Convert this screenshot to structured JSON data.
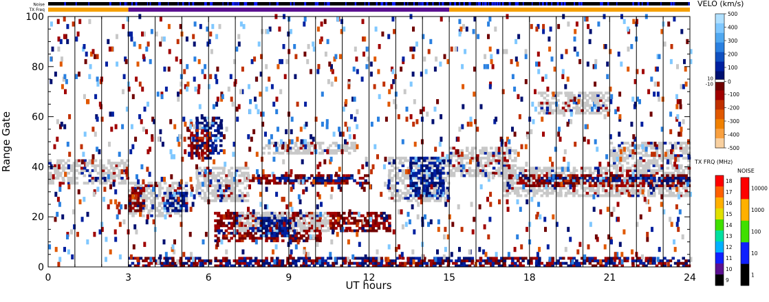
{
  "chart_data": {
    "type": "heatmap",
    "title": "",
    "xlabel": "UT hours",
    "ylabel": "Range Gate",
    "xlim": [
      0,
      24
    ],
    "ylim": [
      0,
      100
    ],
    "x_ticks": [
      "0",
      "3",
      "6",
      "9",
      "12",
      "15",
      "18",
      "21",
      "24"
    ],
    "y_ticks": [
      "0",
      "20",
      "40",
      "60",
      "80",
      "100"
    ],
    "top_rows": [
      {
        "label": "Noise",
        "color": "#000000",
        "accent": "#1020ff"
      },
      {
        "label": "TX Freq",
        "segments": [
          {
            "from": 0,
            "to": 3,
            "color": "#f5a000"
          },
          {
            "from": 3,
            "to": 15,
            "color": "#5a1090"
          },
          {
            "from": 15,
            "to": 24,
            "color": "#f5a000"
          }
        ]
      }
    ],
    "velocity_scale": {
      "label": "VELO (km/s)",
      "ticks": [
        "500",
        "400",
        "300",
        "200",
        "100",
        "10",
        "0",
        "-10",
        "-100",
        "-200",
        "-300",
        "-400",
        "-500"
      ],
      "positive_colors": [
        "#b0e0ff",
        "#80c8ff",
        "#50a8f0",
        "#2a80e0",
        "#1050c0",
        "#0020a0",
        "#001070"
      ],
      "negative_colors": [
        "#700000",
        "#a00000",
        "#c03000",
        "#e05800",
        "#f08000",
        "#f8a040",
        "#f8d0a0"
      ],
      "ground_scatter": "#c8c8c8"
    },
    "txfreq_scale": {
      "label": "TX FRQ (MHz)",
      "ticks": [
        "18",
        "17",
        "16",
        "15",
        "14",
        "13",
        "12",
        "11",
        "10",
        "9"
      ],
      "colors": [
        "#ff0000",
        "#ff6000",
        "#ffb000",
        "#e0e000",
        "#40e000",
        "#00e0a0",
        "#00b0ff",
        "#1020ff",
        "#5a1090",
        "#000000"
      ]
    },
    "noise_scale": {
      "label": "NOISE",
      "ticks": [
        "10000",
        "1000",
        "100",
        "10",
        "1"
      ],
      "colors": [
        "#ff0000",
        "#ffb000",
        "#40e000",
        "#1020ff",
        "#000000"
      ]
    },
    "bands": [
      {
        "t0": 0.0,
        "t1": 3.0,
        "g0": 33,
        "g1": 43,
        "kind": "gs"
      },
      {
        "t0": 3.0,
        "t1": 5.2,
        "g0": 20,
        "g1": 34,
        "kind": "gs"
      },
      {
        "t0": 3.0,
        "t1": 3.6,
        "g0": 22,
        "g1": 32,
        "kind": "neg"
      },
      {
        "t0": 4.3,
        "t1": 5.2,
        "g0": 22,
        "g1": 30,
        "kind": "pos"
      },
      {
        "t0": 5.5,
        "t1": 6.5,
        "g0": 45,
        "g1": 60,
        "kind": "pos"
      },
      {
        "t0": 5.2,
        "t1": 6.1,
        "g0": 43,
        "g1": 55,
        "kind": "neg"
      },
      {
        "t0": 5.5,
        "t1": 7.5,
        "g0": 26,
        "g1": 40,
        "kind": "gs"
      },
      {
        "t0": 6.2,
        "t1": 10.2,
        "g0": 10,
        "g1": 22,
        "kind": "neg"
      },
      {
        "t0": 7.0,
        "t1": 10.5,
        "g0": 14,
        "g1": 22,
        "kind": "gs"
      },
      {
        "t0": 7.8,
        "t1": 9.0,
        "g0": 12,
        "g1": 20,
        "kind": "pos"
      },
      {
        "t0": 7.5,
        "t1": 12.0,
        "g0": 33,
        "g1": 37,
        "kind": "neg"
      },
      {
        "t0": 8.5,
        "t1": 11.5,
        "g0": 34,
        "g1": 36,
        "kind": "pos"
      },
      {
        "t0": 8.0,
        "t1": 11.5,
        "g0": 45,
        "g1": 50,
        "kind": "gs"
      },
      {
        "t0": 10.5,
        "t1": 12.8,
        "g0": 14,
        "g1": 22,
        "kind": "neg"
      },
      {
        "t0": 12.7,
        "t1": 15.0,
        "g0": 26,
        "g1": 44,
        "kind": "gs"
      },
      {
        "t0": 13.5,
        "t1": 14.8,
        "g0": 28,
        "g1": 44,
        "kind": "pos"
      },
      {
        "t0": 15.0,
        "t1": 17.5,
        "g0": 36,
        "g1": 48,
        "kind": "gs"
      },
      {
        "t0": 17.0,
        "t1": 24.0,
        "g0": 28,
        "g1": 40,
        "kind": "gs"
      },
      {
        "t0": 17.5,
        "t1": 24.0,
        "g0": 32,
        "g1": 37,
        "kind": "neg"
      },
      {
        "t0": 18.5,
        "t1": 24.0,
        "g0": 34,
        "g1": 36,
        "kind": "pos"
      },
      {
        "t0": 18.3,
        "t1": 21.0,
        "g0": 61,
        "g1": 70,
        "kind": "gs"
      },
      {
        "t0": 21.0,
        "t1": 24.0,
        "g0": 40,
        "g1": 50,
        "kind": "gs"
      },
      {
        "t0": 3.0,
        "t1": 24.0,
        "g0": 0,
        "g1": 4,
        "kind": "mix"
      }
    ]
  }
}
